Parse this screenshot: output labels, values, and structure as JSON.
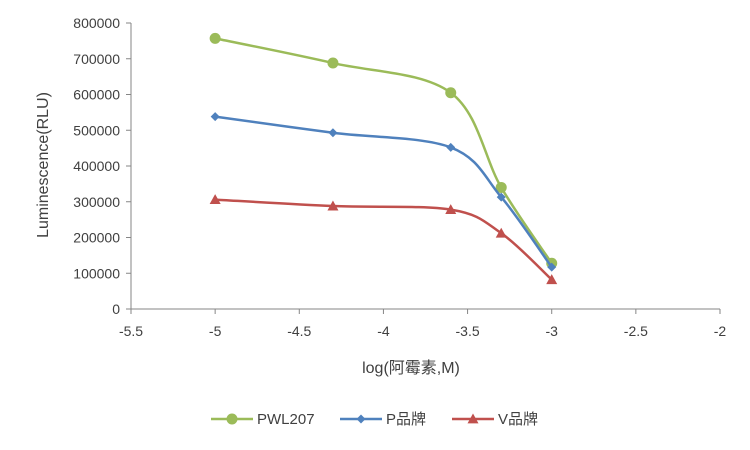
{
  "chart_data": {
    "type": "line",
    "title": "",
    "xlabel": "log(阿霉素,M)",
    "ylabel": "Luminescence(RLU)",
    "xlim": [
      -5.5,
      -2
    ],
    "ylim": [
      0,
      800000
    ],
    "x_ticks": [
      -5.5,
      -5,
      -4.5,
      -4,
      -3.5,
      -3,
      -2.5,
      -2
    ],
    "x_tick_labels": [
      "-5.5",
      "-5",
      "-4.5",
      "-4",
      "-3.5",
      "-3",
      "-2.5",
      "-2"
    ],
    "y_ticks": [
      0,
      100000,
      200000,
      300000,
      400000,
      500000,
      600000,
      700000,
      800000
    ],
    "y_tick_labels": [
      "0",
      "100000",
      "200000",
      "300000",
      "400000",
      "500000",
      "600000",
      "700000",
      "800000"
    ],
    "grid": false,
    "smooth": true,
    "legend_position": "bottom",
    "series": [
      {
        "name": "PWL207",
        "color": "#9bbb59",
        "marker": "circle",
        "x": [
          -5,
          -4.3,
          -3.6,
          -3.3,
          -3
        ],
        "y": [
          757000,
          688000,
          605000,
          340000,
          128000
        ]
      },
      {
        "name": "P品牌",
        "color": "#4f81bd",
        "marker": "diamond",
        "x": [
          -5,
          -4.3,
          -3.6,
          -3.3,
          -3
        ],
        "y": [
          538000,
          493000,
          452000,
          313000,
          117000
        ]
      },
      {
        "name": "V品牌",
        "color": "#c0504d",
        "marker": "triangle",
        "x": [
          -5,
          -4.3,
          -3.6,
          -3.3,
          -3
        ],
        "y": [
          306000,
          288000,
          278000,
          212000,
          82000
        ]
      }
    ]
  }
}
